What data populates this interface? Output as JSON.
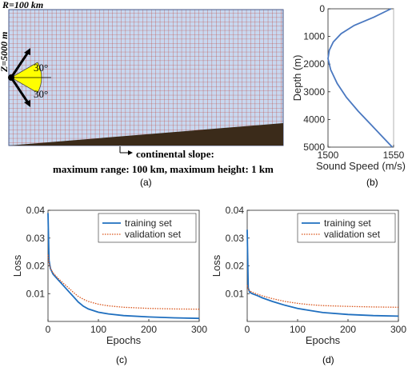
{
  "panel_a": {
    "range_label": "R=100 km",
    "depth_label": "Z=5000 m",
    "angle_up": "30°",
    "angle_down": "30°",
    "slope_line1": "continental slope:",
    "slope_line2": "maximum range: 100 km, maximum height: 1 km",
    "caption": "(a)",
    "colors": {
      "grid_fill": "#c8d8f0",
      "grid_line": "#c0392b",
      "slope": "#3b2b1a",
      "beam": "#ffff00"
    }
  },
  "panel_b": {
    "caption": "(b)"
  },
  "panel_c": {
    "caption": "(c)"
  },
  "panel_d": {
    "caption": "(d)"
  },
  "chart_data": [
    {
      "id": "b",
      "type": "line",
      "xlabel": "Sound Speed (m/s)",
      "ylabel": "Depth (m)",
      "xlim": [
        1500,
        1550
      ],
      "ylim": [
        0,
        5000
      ],
      "y_reversed": true,
      "xticks": [
        1500,
        1550
      ],
      "yticks": [
        0,
        1000,
        2000,
        3000,
        4000,
        5000
      ],
      "grid": "none",
      "reference_line_x": 1550,
      "series": [
        {
          "color": "#4a78c0",
          "x": [
            1548,
            1535,
            1520,
            1510,
            1504,
            1501,
            1500,
            1502,
            1507,
            1514,
            1523,
            1533,
            1543,
            1549
          ],
          "y": [
            0,
            300,
            600,
            900,
            1200,
            1500,
            1800,
            2200,
            2700,
            3200,
            3700,
            4200,
            4700,
            5000
          ]
        }
      ]
    },
    {
      "id": "c",
      "type": "line",
      "xlabel": "Epochs",
      "ylabel": "Loss",
      "xlim": [
        0,
        300
      ],
      "ylim": [
        0,
        0.04
      ],
      "xticks": [
        0,
        100,
        200,
        300
      ],
      "yticks": [
        0.01,
        0.02,
        0.03,
        0.04
      ],
      "legend": "top-right",
      "series": [
        {
          "name": "training set",
          "color": "#1f6fbf",
          "style": "solid",
          "x": [
            0,
            2,
            5,
            10,
            20,
            30,
            40,
            50,
            60,
            70,
            80,
            100,
            120,
            150,
            200,
            250,
            300
          ],
          "y": [
            0.039,
            0.022,
            0.019,
            0.017,
            0.015,
            0.013,
            0.011,
            0.009,
            0.007,
            0.0055,
            0.0045,
            0.0033,
            0.0027,
            0.0021,
            0.0016,
            0.0013,
            0.0011
          ]
        },
        {
          "name": "validation set",
          "color": "#d9541a",
          "style": "dotted",
          "x": [
            0,
            2,
            5,
            10,
            20,
            30,
            40,
            50,
            60,
            70,
            80,
            100,
            120,
            150,
            200,
            250,
            300
          ],
          "y": [
            0.024,
            0.021,
            0.019,
            0.0175,
            0.0155,
            0.0138,
            0.0122,
            0.0105,
            0.009,
            0.008,
            0.0072,
            0.0062,
            0.0056,
            0.0051,
            0.0047,
            0.0045,
            0.0044
          ]
        }
      ]
    },
    {
      "id": "d",
      "type": "line",
      "xlabel": "Epochs",
      "ylabel": "Loss",
      "xlim": [
        0,
        300
      ],
      "ylim": [
        0,
        0.04
      ],
      "xticks": [
        0,
        100,
        200,
        300
      ],
      "yticks": [
        0.01,
        0.02,
        0.03,
        0.04
      ],
      "legend": "top-right",
      "series": [
        {
          "name": "training set",
          "color": "#1f6fbf",
          "style": "solid",
          "x": [
            0,
            2,
            5,
            10,
            20,
            30,
            50,
            75,
            100,
            125,
            150,
            200,
            250,
            300
          ],
          "y": [
            0.033,
            0.012,
            0.0105,
            0.01,
            0.0093,
            0.0085,
            0.0072,
            0.0058,
            0.0047,
            0.0039,
            0.0032,
            0.0025,
            0.0021,
            0.0019
          ]
        },
        {
          "name": "validation set",
          "color": "#d9541a",
          "style": "dotted",
          "x": [
            0,
            2,
            5,
            10,
            20,
            30,
            50,
            75,
            100,
            125,
            150,
            200,
            250,
            300
          ],
          "y": [
            0.013,
            0.0115,
            0.011,
            0.0105,
            0.0098,
            0.0092,
            0.0082,
            0.0072,
            0.0065,
            0.006,
            0.0057,
            0.0054,
            0.0052,
            0.0051
          ]
        }
      ]
    }
  ]
}
